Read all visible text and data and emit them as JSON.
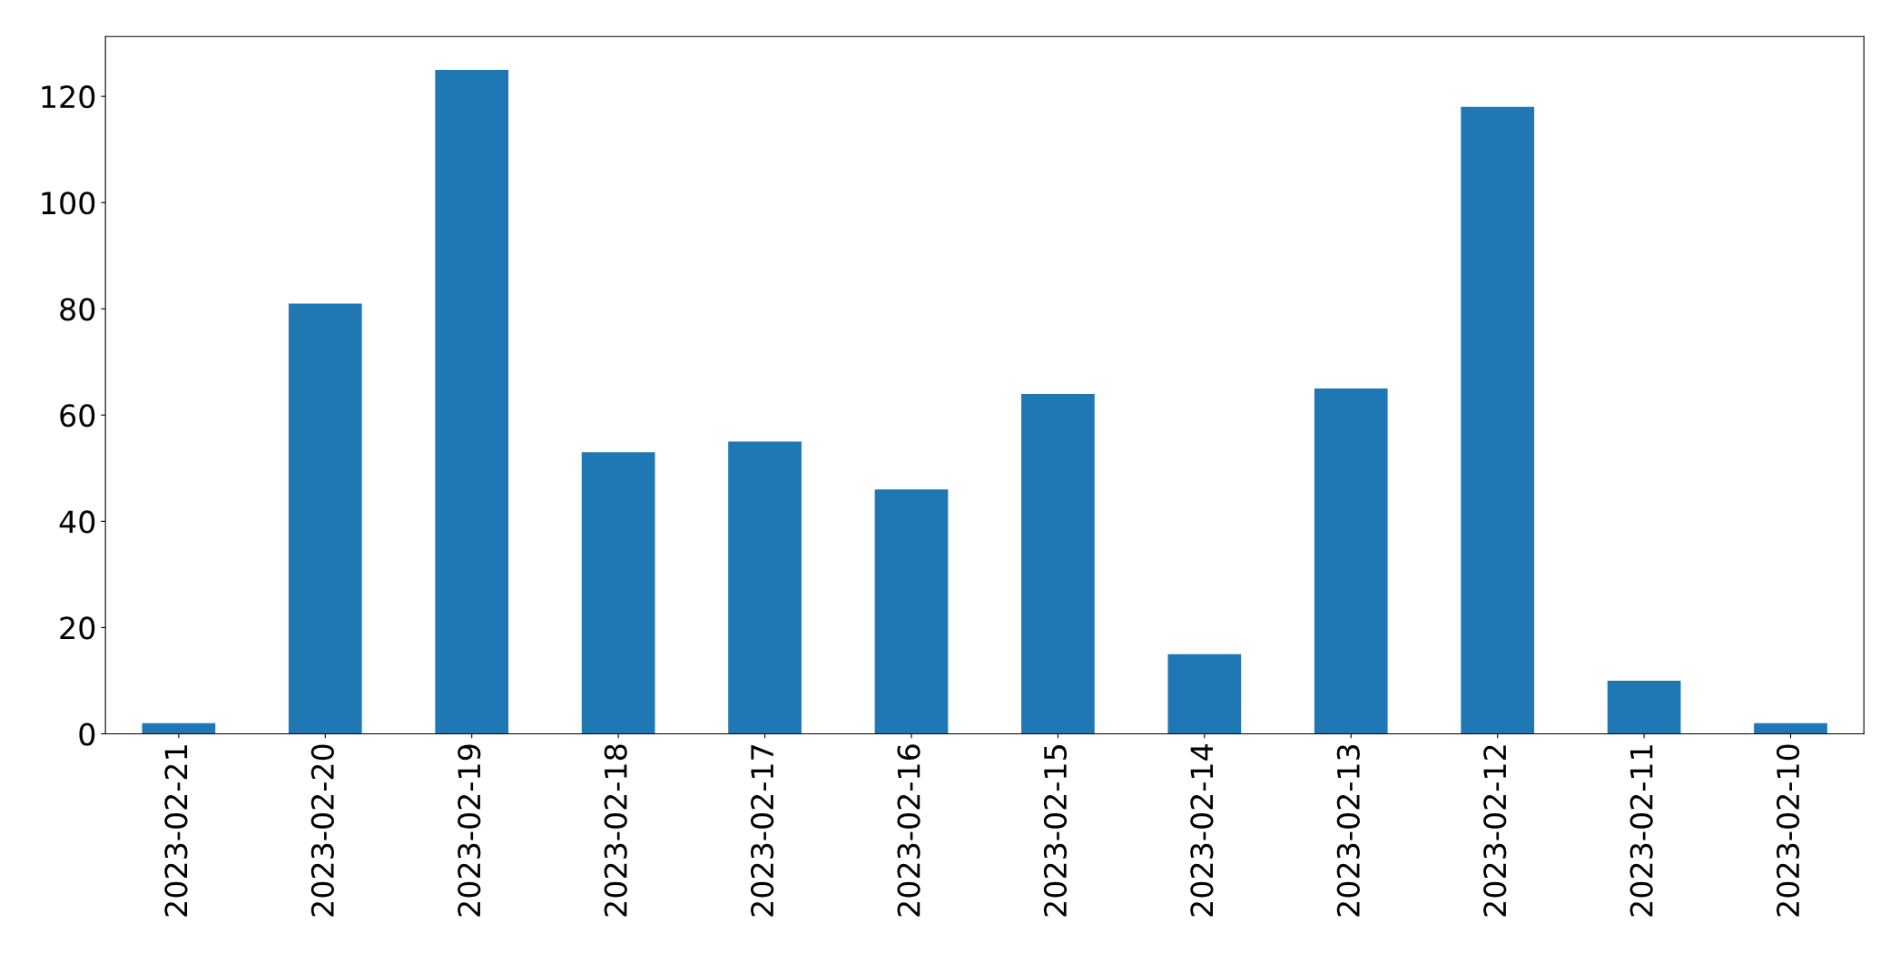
{
  "chart_data": {
    "type": "bar",
    "categories": [
      "2023-02-21",
      "2023-02-20",
      "2023-02-19",
      "2023-02-18",
      "2023-02-17",
      "2023-02-16",
      "2023-02-15",
      "2023-02-14",
      "2023-02-13",
      "2023-02-12",
      "2023-02-11",
      "2023-02-10"
    ],
    "values": [
      2,
      81,
      125,
      53,
      55,
      46,
      64,
      15,
      65,
      118,
      10,
      2
    ],
    "color": "#1f77b4",
    "ylim": [
      0,
      131.25
    ],
    "yticks": [
      0,
      20,
      40,
      60,
      80,
      100,
      120
    ],
    "grid": false,
    "legend": false
  }
}
